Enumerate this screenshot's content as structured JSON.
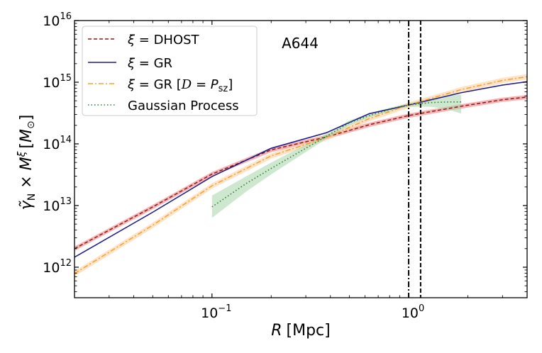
{
  "chart_data": {
    "type": "line",
    "title": "",
    "annotation": "A644",
    "xlabel": "R [Mpc]",
    "xlabel_parts": {
      "var": "R",
      "unit": "[Mpc]"
    },
    "ylabel": "γ̃_N × M^ξ [M_⊙]",
    "ylabel_parts": {
      "gamma": "γ̃",
      "gamma_sub": "N",
      "times": " × ",
      "m": "M",
      "xi": "ξ",
      "unit_open": "[",
      "msun": "M",
      "sun": "⊙",
      "unit_close": "]"
    },
    "xscale": "log",
    "yscale": "log",
    "xlim": [
      0.02,
      4.0
    ],
    "ylim": [
      320000000000.0,
      1e+16
    ],
    "grid": false,
    "x_ticks": [
      {
        "value": 0.1,
        "base": "10",
        "exp": "−1"
      },
      {
        "value": 1.0,
        "base": "10",
        "exp": "0"
      }
    ],
    "y_ticks": [
      {
        "value": 1000000000000.0,
        "base": "10",
        "exp": "12"
      },
      {
        "value": 10000000000000.0,
        "base": "10",
        "exp": "13"
      },
      {
        "value": 100000000000000.0,
        "base": "10",
        "exp": "14"
      },
      {
        "value": 1000000000000000.0,
        "base": "10",
        "exp": "15"
      },
      {
        "value": 1e+16,
        "base": "10",
        "exp": "16"
      }
    ],
    "vertical_lines": [
      {
        "x": 1.0,
        "style": "dashdot",
        "color": "#000000"
      },
      {
        "x": 1.15,
        "style": "dashed",
        "color": "#000000"
      }
    ],
    "legend_position": "top-left",
    "series": [
      {
        "name": "ξ = DHOST",
        "legend_parts": {
          "xi": "ξ",
          "eq": " = DHOST"
        },
        "style": "dashed",
        "color": "#8b1a1a",
        "band_color": "#f08080",
        "x": [
          0.02,
          0.05,
          0.1,
          0.2,
          0.38,
          0.63,
          1.0,
          1.85,
          3.0,
          4.0
        ],
        "y": [
          2000000000000.0,
          9500000000000.0,
          32400000000000.0,
          80000000000000.0,
          129000000000000.0,
          204000000000000.0,
          288000000000000.0,
          407000000000000.0,
          520000000000000.0,
          575000000000000.0
        ],
        "band_frac": 0.08
      },
      {
        "name": "ξ = GR",
        "legend_parts": {
          "xi": "ξ",
          "eq": " = GR"
        },
        "style": "solid",
        "color": "#1a1a8c",
        "band_color": "#9fa8da",
        "x": [
          0.02,
          0.05,
          0.1,
          0.2,
          0.38,
          0.63,
          1.0,
          1.85,
          3.0,
          4.0
        ],
        "y": [
          1450000000000.0,
          7800000000000.0,
          29500000000000.0,
          85000000000000.0,
          151000000000000.0,
          309000000000000.0,
          427000000000000.0,
          676000000000000.0,
          900000000000000.0,
          1020000000000000.0
        ],
        "band_frac": 0.02
      },
      {
        "name": "ξ = GR [D = P_sz]",
        "legend_parts": {
          "xi": "ξ",
          "eq": " = GR [",
          "d": "D",
          "eq2": " = ",
          "p": "P",
          "p_sub": "sz",
          "close": "]"
        },
        "style": "dashdot",
        "color": "#f5a030",
        "band_color": "#fdd0a0",
        "x": [
          0.02,
          0.05,
          0.1,
          0.2,
          0.38,
          0.63,
          1.0,
          1.85,
          3.0,
          4.0
        ],
        "y": [
          790000000000.0,
          4800000000000.0,
          20900000000000.0,
          64000000000000.0,
          126000000000000.0,
          257000000000000.0,
          427000000000000.0,
          759000000000000.0,
          1070000000000000.0,
          1230000000000000.0
        ],
        "band_frac": 0.1
      },
      {
        "name": "Gaussian Process",
        "legend_parts": {
          "eq": "Gaussian Process"
        },
        "style": "dotted",
        "color": "#2e7d32",
        "band_color": "#a5d6a7",
        "x": [
          0.1,
          0.15,
          0.2,
          0.3,
          0.38,
          0.5,
          0.63,
          0.8,
          1.0,
          1.3,
          1.6,
          1.85
        ],
        "y": [
          9500000000000.0,
          23000000000000.0,
          40000000000000.0,
          85000000000000.0,
          132000000000000.0,
          220000000000000.0,
          288000000000000.0,
          360000000000000.0,
          427000000000000.0,
          468000000000000.0,
          479000000000000.0,
          479000000000000.0
        ],
        "y_lower": [
          6300000000000.0,
          17000000000000.0,
          32000000000000.0,
          74000000000000.0,
          120000000000000.0,
          200000000000000.0,
          270000000000000.0,
          340000000000000.0,
          400000000000000.0,
          400000000000000.0,
          360000000000000.0,
          310000000000000.0
        ],
        "y_upper": [
          14500000000000.0,
          30000000000000.0,
          50000000000000.0,
          97000000000000.0,
          145000000000000.0,
          240000000000000.0,
          310000000000000.0,
          385000000000000.0,
          455000000000000.0,
          540000000000000.0,
          600000000000000.0,
          630000000000000.0
        ]
      }
    ]
  }
}
